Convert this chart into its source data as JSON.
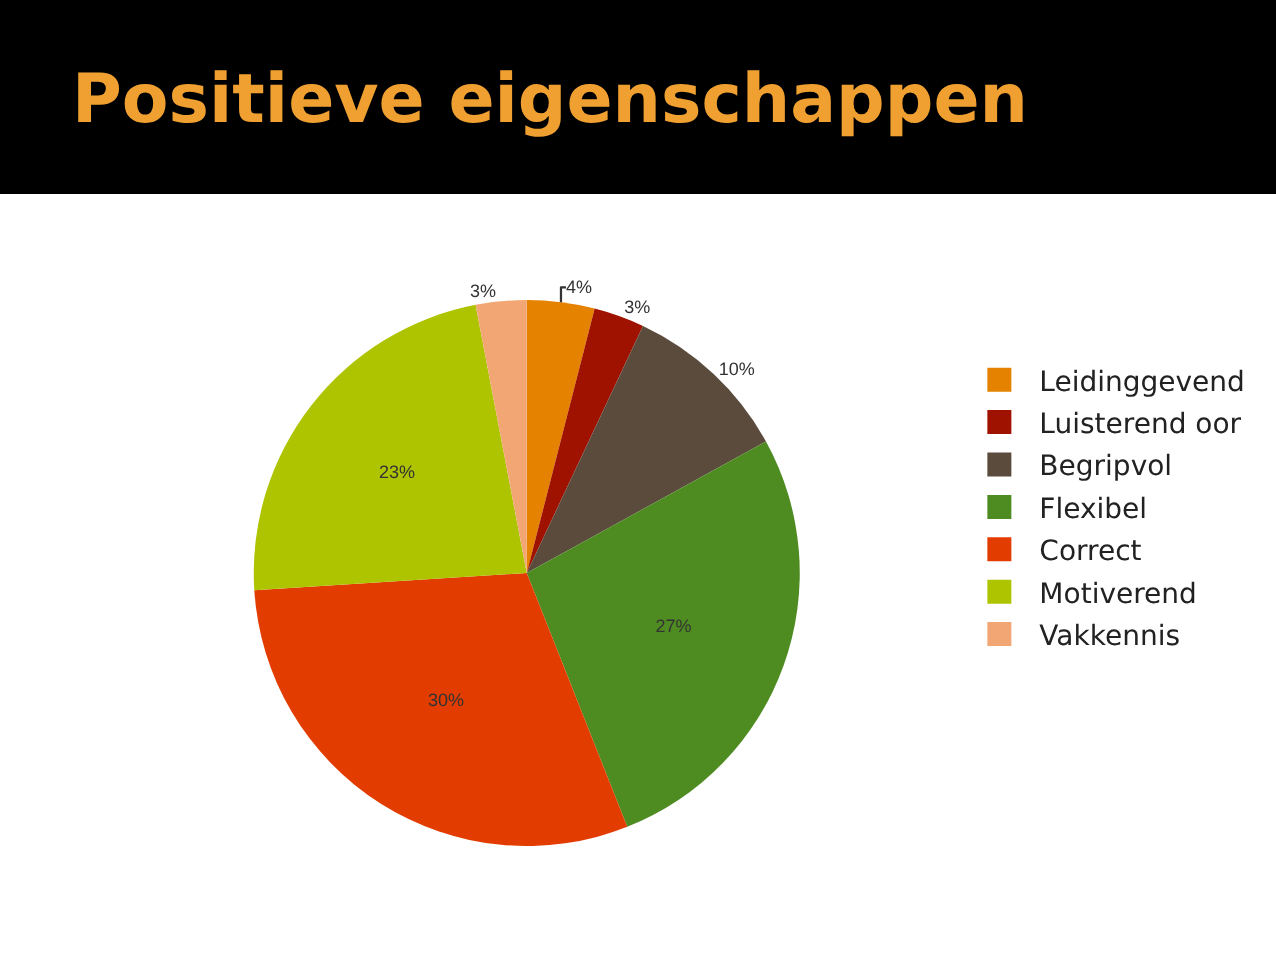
{
  "chart_data": {
    "type": "pie",
    "title": "Positieve eigenschappen",
    "categories": [
      "Leidinggevend",
      "Luisterend oor",
      "Begripvol",
      "Flexibel",
      "Correct",
      "Motiverend",
      "Vakkennis"
    ],
    "values": [
      4,
      3,
      10,
      27,
      30,
      23,
      3
    ],
    "value_labels": [
      "4%",
      "3%",
      "10%",
      "27%",
      "30%",
      "23%",
      "3%"
    ],
    "colors": [
      "#e58200",
      "#a01200",
      "#5b4b3d",
      "#4e8c22",
      "#e23c00",
      "#aec400",
      "#f2a673"
    ],
    "legend": "right"
  }
}
